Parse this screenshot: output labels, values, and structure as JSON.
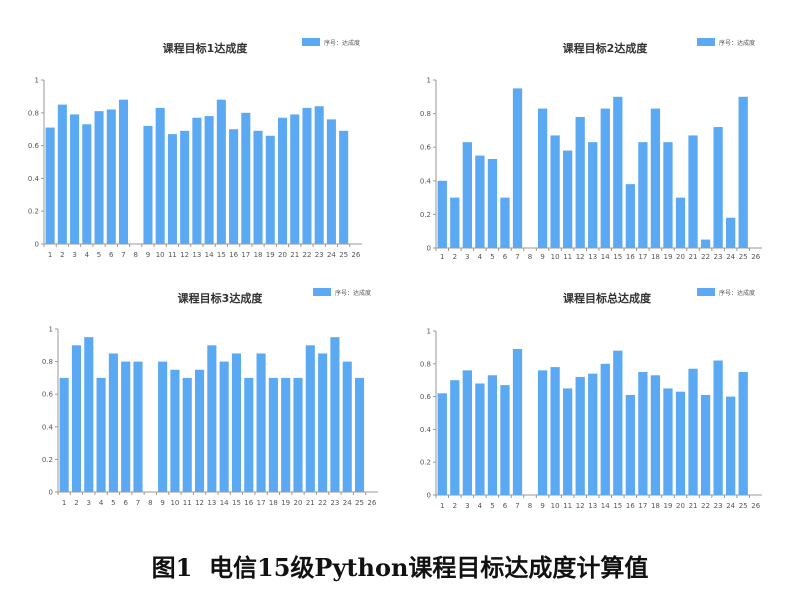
{
  "figure": {
    "caption_number": "图1",
    "caption_text": "电信15级Python课程目标达成度计算值"
  },
  "colors": {
    "bar": "#5aa9f2",
    "axis": "#999999",
    "text": "#333333"
  },
  "chart_data": [
    {
      "type": "bar",
      "title": "课程目标1达成度",
      "legend": "序号：达成度",
      "legend_position": "top-right",
      "categories": [
        "1",
        "2",
        "3",
        "4",
        "5",
        "6",
        "7",
        "8",
        "9",
        "10",
        "11",
        "12",
        "13",
        "14",
        "15",
        "16",
        "17",
        "18",
        "19",
        "20",
        "21",
        "22",
        "23",
        "24",
        "25",
        "26"
      ],
      "values": [
        0.71,
        0.85,
        0.79,
        0.73,
        0.81,
        0.82,
        0.88,
        null,
        0.72,
        0.83,
        0.67,
        0.69,
        0.77,
        0.78,
        0.88,
        0.7,
        0.8,
        0.69,
        0.66,
        0.77,
        0.79,
        0.83,
        0.84,
        0.76,
        0.69,
        null
      ],
      "y_ticks": [
        "0",
        "0.2",
        "0.4",
        "0.6",
        "0.8",
        "1"
      ],
      "ylim": [
        0,
        1
      ],
      "grid": false
    },
    {
      "type": "bar",
      "title": "课程目标2达成度",
      "legend": "序号：达成度",
      "legend_position": "top-right",
      "categories": [
        "1",
        "2",
        "3",
        "4",
        "5",
        "6",
        "7",
        "8",
        "9",
        "10",
        "11",
        "12",
        "13",
        "14",
        "15",
        "16",
        "17",
        "18",
        "19",
        "20",
        "21",
        "22",
        "23",
        "24",
        "25",
        "26"
      ],
      "values": [
        0.4,
        0.3,
        0.63,
        0.55,
        0.53,
        0.3,
        0.95,
        null,
        0.83,
        0.67,
        0.58,
        0.78,
        0.63,
        0.83,
        0.9,
        0.38,
        0.63,
        0.83,
        0.63,
        0.3,
        0.67,
        0.05,
        0.72,
        0.18,
        0.9,
        null
      ],
      "y_ticks": [
        "0",
        "0.2",
        "0.4",
        "0.6",
        "0.8",
        "1"
      ],
      "ylim": [
        0,
        1
      ],
      "grid": false
    },
    {
      "type": "bar",
      "title": "课程目标3达成度",
      "legend": "序号：达成度",
      "legend_position": "top-right",
      "categories": [
        "1",
        "2",
        "3",
        "4",
        "5",
        "6",
        "7",
        "8",
        "9",
        "10",
        "11",
        "12",
        "13",
        "14",
        "15",
        "16",
        "17",
        "18",
        "19",
        "20",
        "21",
        "22",
        "23",
        "24",
        "25",
        "26"
      ],
      "values": [
        0.7,
        0.9,
        0.95,
        0.7,
        0.85,
        0.8,
        0.8,
        null,
        0.8,
        0.75,
        0.7,
        0.75,
        0.9,
        0.8,
        0.85,
        0.7,
        0.85,
        0.7,
        0.7,
        0.7,
        0.9,
        0.85,
        0.95,
        0.8,
        0.7,
        null
      ],
      "y_ticks": [
        "0",
        "0.2",
        "0.4",
        "0.6",
        "0.8",
        "1"
      ],
      "ylim": [
        0,
        1
      ],
      "grid": false
    },
    {
      "type": "bar",
      "title": "课程目标总达成度",
      "legend": "序号：达成度",
      "legend_position": "top-right",
      "categories": [
        "1",
        "2",
        "3",
        "4",
        "5",
        "6",
        "7",
        "8",
        "9",
        "10",
        "11",
        "12",
        "13",
        "14",
        "15",
        "16",
        "17",
        "18",
        "19",
        "20",
        "21",
        "22",
        "23",
        "24",
        "25",
        "26"
      ],
      "values": [
        0.62,
        0.7,
        0.76,
        0.68,
        0.73,
        0.67,
        0.89,
        null,
        0.76,
        0.78,
        0.65,
        0.72,
        0.74,
        0.8,
        0.88,
        0.61,
        0.75,
        0.73,
        0.65,
        0.63,
        0.77,
        0.61,
        0.82,
        0.6,
        0.75,
        null
      ],
      "y_ticks": [
        "0",
        "0.2",
        "0.4",
        "0.6",
        "0.8",
        "1"
      ],
      "ylim": [
        0,
        1
      ],
      "grid": false
    }
  ]
}
